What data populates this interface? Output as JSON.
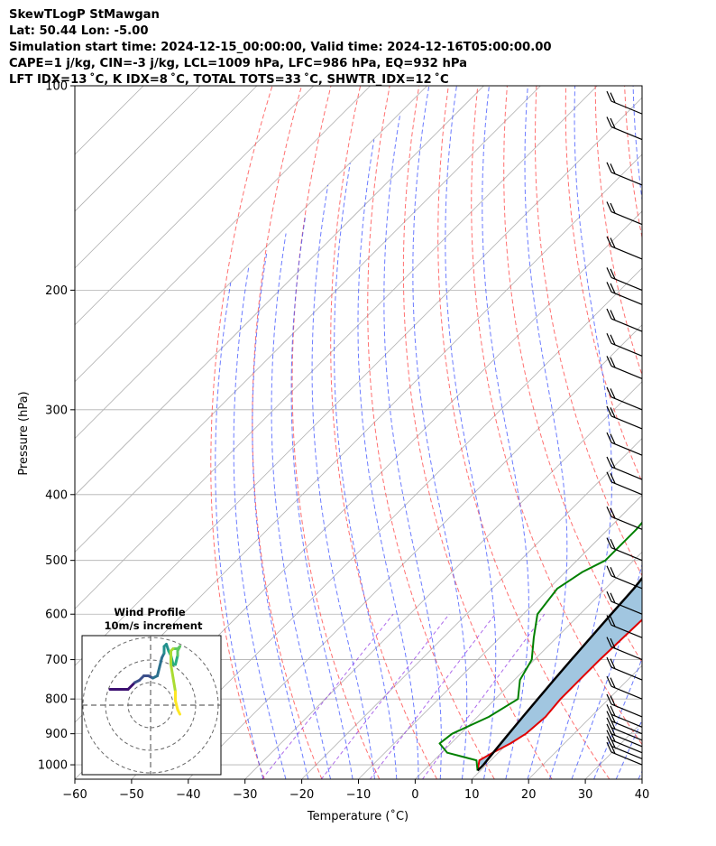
{
  "header": {
    "title": "SkewTLogP StMawgan",
    "location": "Lat: 50.44   Lon: -5.00",
    "times": "Simulation start time: 2024-12-15_00:00:00, Valid time: 2024-12-16T05:00:00.00",
    "indices1": "CAPE=1 j/kg, CIN=-3 j/kg, LCL=1009 hPa, LFC=986 hPa, EQ=932 hPa",
    "indices2": "LFT IDX=13 ˚C, K IDX=8 ˚C, TOTAL TOTS=33 ˚C, SHWTR_IDX=12 ˚C"
  },
  "chart_data": {
    "type": "line",
    "subtype": "skew-T log-P",
    "xlabel": "Temperature (˚C)",
    "ylabel": "Pressure (hPa)",
    "xlim": [
      -60,
      40
    ],
    "ylim": [
      1050,
      100
    ],
    "y_scale": "log",
    "x_ticks": [
      "−60",
      "−50",
      "−40",
      "−30",
      "−20",
      "−10",
      "0",
      "10",
      "20",
      "30",
      "40"
    ],
    "y_ticks": [
      "100",
      "200",
      "300",
      "400",
      "500",
      "600",
      "700",
      "800",
      "900",
      "1000"
    ],
    "grid": true,
    "series": [
      {
        "color": "#e00000",
        "p": [
          1020,
          985,
          960,
          930,
          900,
          850,
          800,
          750,
          700,
          600,
          550,
          500,
          450,
          400,
          350,
          300,
          280,
          260,
          250,
          240,
          230,
          220,
          210,
          200,
          190,
          180,
          170,
          160,
          150,
          140,
          130,
          120,
          110,
          100
        ],
        "t": [
          9.5,
          8.0,
          9.0,
          10.5,
          11.5,
          12.0,
          11.5,
          11.5,
          11.5,
          12.0,
          12.0,
          11.5,
          11.0,
          10.5,
          10.0,
          9.5,
          9.5,
          8.5,
          8.0,
          7.0,
          5.5,
          7.0,
          12.0,
          15.0,
          20.0,
          25.0,
          28.0,
          32.0,
          35.0,
          39.0,
          43.0,
          47.0,
          51.0,
          55.0
        ]
      },
      {
        "color": "#008000",
        "p": [
          1020,
          985,
          960,
          930,
          900,
          850,
          800,
          750,
          700,
          650,
          600,
          550,
          520,
          500,
          450,
          420,
          400,
          380,
          350,
          320,
          310,
          280,
          270,
          250,
          240,
          230,
          220,
          200,
          190,
          180,
          170,
          160,
          150,
          140,
          130,
          120,
          110,
          100
        ],
        "t": [
          9.5,
          7.5,
          1.0,
          -2.0,
          -1.5,
          2.0,
          4.0,
          1.0,
          -0.5,
          -4.0,
          -7.5,
          -8.5,
          -7.0,
          -5.0,
          -5.0,
          -5.5,
          -4.0,
          -1.5,
          2.0,
          5.5,
          6.5,
          4.5,
          2.0,
          3.0,
          2.0,
          0.5,
          -1.0,
          -3.5,
          3.0,
          10.0,
          12.0,
          14.0,
          18.0,
          22.0,
          27.0,
          31.0,
          35.0,
          38.0
        ]
      },
      {
        "color": "#000000",
        "p": [
          1020,
          1000,
          950,
          900,
          850,
          800,
          750,
          700,
          650,
          600,
          550,
          500,
          450,
          400,
          350,
          300,
          250,
          200,
          150,
          100
        ],
        "t": [
          9.5,
          9.5,
          9.0,
          8.5,
          8.0,
          7.5,
          7.0,
          6.5,
          6.0,
          5.5,
          5.0,
          4.0,
          3.0,
          1.5,
          0.0,
          -2.0,
          -5.0,
          -9.0,
          -15.0,
          -27.0
        ]
      }
    ],
    "cape_fill_color": "#a1c6e0",
    "wind_barbs": {
      "color": "#000000",
      "p": [
        1000,
        980,
        960,
        940,
        920,
        900,
        880,
        850,
        800,
        750,
        700,
        650,
        600,
        550,
        500,
        450,
        400,
        380,
        350,
        320,
        300,
        270,
        250,
        230,
        210,
        200,
        180,
        160,
        140,
        120,
        110
      ]
    },
    "wind_profile": {
      "title": "Wind Profile",
      "subtitle": "10m/s increment",
      "trace_u": [
        -18,
        -15,
        -13,
        -10,
        -7,
        -5,
        -3,
        -1,
        1,
        3,
        4,
        5,
        6,
        6,
        7,
        8,
        9,
        10,
        11,
        12,
        12,
        13,
        12,
        10,
        9,
        9,
        10,
        11,
        11,
        12,
        13
      ],
      "trace_v": [
        7,
        7,
        7,
        7,
        10,
        11,
        13,
        13,
        12,
        13,
        17,
        21,
        23,
        26,
        27,
        24,
        22,
        18,
        18,
        22,
        24,
        26,
        25,
        25,
        24,
        18,
        12,
        6,
        2,
        -2,
        -4
      ]
    }
  }
}
